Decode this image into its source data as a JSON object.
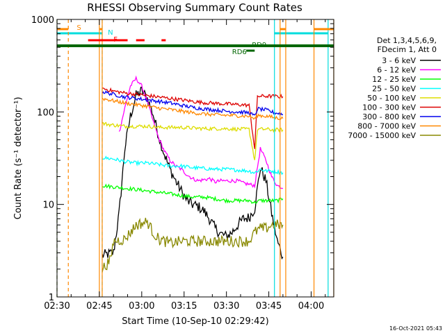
{
  "chart_data": {
    "type": "line",
    "title": "RHESSI Observing Summary Count Rates",
    "xlabel": "Start Time (10-Sep-10 02:29:42)",
    "ylabel": "Count Rate (s⁻¹ detector⁻¹)",
    "yscale": "log",
    "ylim": [
      1,
      1000
    ],
    "xlim_minutes": [
      0,
      98
    ],
    "x_ticks": [
      {
        "t": 0,
        "label": "02:30"
      },
      {
        "t": 15,
        "label": "02:45"
      },
      {
        "t": 30,
        "label": "03:00"
      },
      {
        "t": 45,
        "label": "03:15"
      },
      {
        "t": 60,
        "label": "03:30"
      },
      {
        "t": 75,
        "label": "03:45"
      },
      {
        "t": 90,
        "label": "04:00"
      }
    ],
    "y_ticks": [
      {
        "v": 1,
        "label": "1"
      },
      {
        "v": 10,
        "label": "10"
      },
      {
        "v": 100,
        "label": "100"
      },
      {
        "v": 1000,
        "label": "1000"
      }
    ],
    "legend_header": [
      "Det 1,3,4,5,6,9,",
      "FDecim 1, Att 0"
    ],
    "series": [
      {
        "name": "3 - 6 keV",
        "color": "#000000",
        "points": [
          [
            16,
            2.8
          ],
          [
            20,
            3
          ],
          [
            22,
            8
          ],
          [
            24,
            40
          ],
          [
            26,
            90
          ],
          [
            28,
            150
          ],
          [
            30,
            170
          ],
          [
            32,
            140
          ],
          [
            34,
            95
          ],
          [
            36,
            55
          ],
          [
            38,
            35
          ],
          [
            40,
            24
          ],
          [
            42,
            18
          ],
          [
            44,
            14
          ],
          [
            46,
            11
          ],
          [
            48,
            10
          ],
          [
            50,
            9.5
          ],
          [
            52,
            8.5
          ],
          [
            54,
            7
          ],
          [
            56,
            5.5
          ],
          [
            58,
            4.8
          ],
          [
            60,
            4.5
          ],
          [
            62,
            5
          ],
          [
            64,
            6
          ],
          [
            66,
            7
          ],
          [
            68,
            7.2
          ],
          [
            70,
            9
          ],
          [
            72,
            25
          ],
          [
            74,
            18
          ],
          [
            76,
            8
          ],
          [
            78,
            4
          ],
          [
            80,
            2.7
          ]
        ]
      },
      {
        "name": "6 - 12 keV",
        "color": "#ff00ff",
        "points": [
          [
            22,
            60
          ],
          [
            24,
            110
          ],
          [
            26,
            190
          ],
          [
            28,
            230
          ],
          [
            30,
            190
          ],
          [
            32,
            130
          ],
          [
            34,
            80
          ],
          [
            36,
            52
          ],
          [
            38,
            38
          ],
          [
            40,
            30
          ],
          [
            42,
            26
          ],
          [
            44,
            24
          ],
          [
            46,
            21
          ],
          [
            48,
            19
          ],
          [
            50,
            18
          ],
          [
            52,
            18.5
          ],
          [
            54,
            19
          ],
          [
            56,
            17.5
          ],
          [
            58,
            18
          ],
          [
            60,
            18
          ],
          [
            62,
            18
          ],
          [
            64,
            18
          ],
          [
            66,
            17
          ],
          [
            68,
            16.5
          ],
          [
            70,
            16
          ],
          [
            72,
            40
          ],
          [
            74,
            30
          ],
          [
            76,
            20
          ],
          [
            78,
            16
          ],
          [
            80,
            15
          ]
        ]
      },
      {
        "name": "12 - 25 keV",
        "color": "#00ff00",
        "points": [
          [
            16,
            16
          ],
          [
            20,
            15.5
          ],
          [
            24,
            15
          ],
          [
            28,
            14.5
          ],
          [
            32,
            14
          ],
          [
            36,
            13.5
          ],
          [
            40,
            13
          ],
          [
            44,
            12.5
          ],
          [
            48,
            12
          ],
          [
            52,
            12
          ],
          [
            56,
            11.5
          ],
          [
            60,
            11
          ],
          [
            64,
            11
          ],
          [
            68,
            11
          ],
          [
            70,
            10.5
          ],
          [
            72,
            11
          ],
          [
            74,
            11
          ],
          [
            76,
            11
          ],
          [
            78,
            11
          ],
          [
            80,
            11.5
          ]
        ]
      },
      {
        "name": "25 - 50 keV",
        "color": "#00ffff",
        "points": [
          [
            16,
            32
          ],
          [
            20,
            31
          ],
          [
            24,
            29
          ],
          [
            28,
            28
          ],
          [
            32,
            28
          ],
          [
            36,
            27
          ],
          [
            40,
            26
          ],
          [
            44,
            26
          ],
          [
            48,
            25
          ],
          [
            52,
            24.5
          ],
          [
            56,
            24
          ],
          [
            60,
            24
          ],
          [
            64,
            23.5
          ],
          [
            68,
            23
          ],
          [
            70,
            22
          ],
          [
            72,
            24
          ],
          [
            74,
            23
          ],
          [
            76,
            23
          ],
          [
            78,
            22.5
          ],
          [
            80,
            22
          ]
        ]
      },
      {
        "name": "50 - 100 keV",
        "color": "#dddd00",
        "points": [
          [
            16,
            75
          ],
          [
            20,
            72
          ],
          [
            24,
            70
          ],
          [
            28,
            70
          ],
          [
            32,
            70
          ],
          [
            36,
            68
          ],
          [
            40,
            68
          ],
          [
            44,
            68
          ],
          [
            48,
            67
          ],
          [
            52,
            66
          ],
          [
            56,
            66
          ],
          [
            60,
            66
          ],
          [
            64,
            65
          ],
          [
            68,
            65
          ],
          [
            70,
            30
          ],
          [
            71,
            65
          ],
          [
            74,
            65
          ],
          [
            76,
            64
          ],
          [
            78,
            64
          ],
          [
            80,
            64
          ]
        ]
      },
      {
        "name": "100 - 300 keV",
        "color": "#dd0000",
        "points": [
          [
            16,
            180
          ],
          [
            20,
            168
          ],
          [
            24,
            160
          ],
          [
            28,
            155
          ],
          [
            32,
            150
          ],
          [
            36,
            145
          ],
          [
            40,
            140
          ],
          [
            44,
            135
          ],
          [
            48,
            130
          ],
          [
            52,
            126
          ],
          [
            56,
            124
          ],
          [
            60,
            122
          ],
          [
            64,
            120
          ],
          [
            68,
            118
          ],
          [
            70,
            40
          ],
          [
            71,
            148
          ],
          [
            74,
            148
          ],
          [
            76,
            148
          ],
          [
            78,
            147
          ],
          [
            80,
            146
          ]
        ]
      },
      {
        "name": "300 - 800 keV",
        "color": "#0000ee",
        "points": [
          [
            16,
            165
          ],
          [
            20,
            155
          ],
          [
            24,
            145
          ],
          [
            28,
            140
          ],
          [
            32,
            135
          ],
          [
            36,
            130
          ],
          [
            40,
            125
          ],
          [
            44,
            118
          ],
          [
            48,
            112
          ],
          [
            52,
            108
          ],
          [
            56,
            105
          ],
          [
            60,
            102
          ],
          [
            64,
            100
          ],
          [
            68,
            98
          ],
          [
            70,
            90
          ],
          [
            71,
            108
          ],
          [
            74,
            105
          ],
          [
            76,
            100
          ],
          [
            78,
            97
          ],
          [
            80,
            94
          ]
        ]
      },
      {
        "name": "800 - 7000 keV",
        "color": "#ff8800",
        "points": [
          [
            16,
            140
          ],
          [
            20,
            132
          ],
          [
            24,
            125
          ],
          [
            28,
            120
          ],
          [
            32,
            115
          ],
          [
            36,
            110
          ],
          [
            40,
            106
          ],
          [
            44,
            102
          ],
          [
            48,
            98
          ],
          [
            52,
            95
          ],
          [
            56,
            93
          ],
          [
            60,
            92
          ],
          [
            64,
            91
          ],
          [
            68,
            90
          ],
          [
            70,
            84
          ],
          [
            71,
            92
          ],
          [
            74,
            90
          ],
          [
            76,
            88
          ],
          [
            78,
            86
          ],
          [
            80,
            85
          ]
        ]
      },
      {
        "name": "7000 - 15000 keV",
        "color": "#888800",
        "points": [
          [
            16,
            2
          ],
          [
            19,
            2.5
          ],
          [
            20,
            4
          ],
          [
            24,
            4.2
          ],
          [
            26,
            5
          ],
          [
            28,
            6
          ],
          [
            32,
            6.5
          ],
          [
            34,
            5
          ],
          [
            36,
            4.2
          ],
          [
            38,
            4
          ],
          [
            40,
            3.8
          ],
          [
            44,
            4
          ],
          [
            48,
            4
          ],
          [
            52,
            4
          ],
          [
            56,
            4
          ],
          [
            60,
            4
          ],
          [
            64,
            4
          ],
          [
            68,
            4
          ],
          [
            70,
            5
          ],
          [
            72,
            5.5
          ],
          [
            74,
            5.5
          ],
          [
            76,
            6
          ],
          [
            78,
            6
          ],
          [
            80,
            6
          ]
        ]
      }
    ],
    "annotations": [
      {
        "label": "S",
        "t": 7,
        "color": "#ff8800"
      },
      {
        "label": "N",
        "t": 25,
        "color": "#00dddd"
      },
      {
        "label": "F",
        "t": 27,
        "color": "#ff0000"
      },
      {
        "label": "RD9",
        "t": 94,
        "color": "#006600"
      },
      {
        "label": "RD6",
        "t": 84,
        "color": "#006600"
      }
    ],
    "saa_intervals_minutes": [
      [
        0,
        4
      ],
      [
        15,
        16
      ],
      [
        79,
        81
      ],
      [
        91,
        98
      ]
    ],
    "night_intervals_minutes": [
      [
        0,
        16
      ],
      [
        77,
        96
      ]
    ],
    "flare_intervals_minutes": [
      [
        11,
        25
      ],
      [
        28,
        31
      ],
      [
        37,
        38.5
      ]
    ]
  },
  "timestamp": "16-Oct-2021 05:43"
}
